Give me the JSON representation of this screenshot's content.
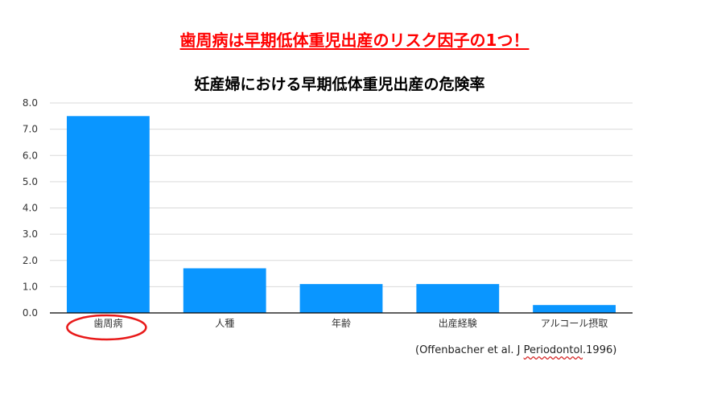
{
  "headline": "歯周病は早期低体重児出産のリスク因子の1つ！",
  "citation": {
    "prefix": "(Offenbacher et al. J ",
    "journal": "Periodontol",
    "suffix": ".1996)"
  },
  "colors": {
    "bar": "#0a96ff",
    "headline": "#ff0000",
    "highlight_ellipse": "#e81919",
    "grid": "#d9d9d9",
    "axis": "#000000"
  },
  "highlight": {
    "category": "歯周病",
    "shape": "ellipse"
  },
  "chart_data": {
    "type": "bar",
    "title": "妊産婦における早期低体重児出産の危険率",
    "xlabel": "",
    "ylabel": "",
    "categories": [
      "歯周病",
      "人種",
      "年齢",
      "出産経験",
      "アルコール摂取"
    ],
    "values": [
      7.5,
      1.7,
      1.1,
      1.1,
      0.3
    ],
    "ylim": [
      0,
      8
    ],
    "yticks": [
      "0.0",
      "1.0",
      "2.0",
      "3.0",
      "4.0",
      "5.0",
      "6.0",
      "7.0",
      "8.0"
    ],
    "grid": true,
    "legend": "none"
  }
}
